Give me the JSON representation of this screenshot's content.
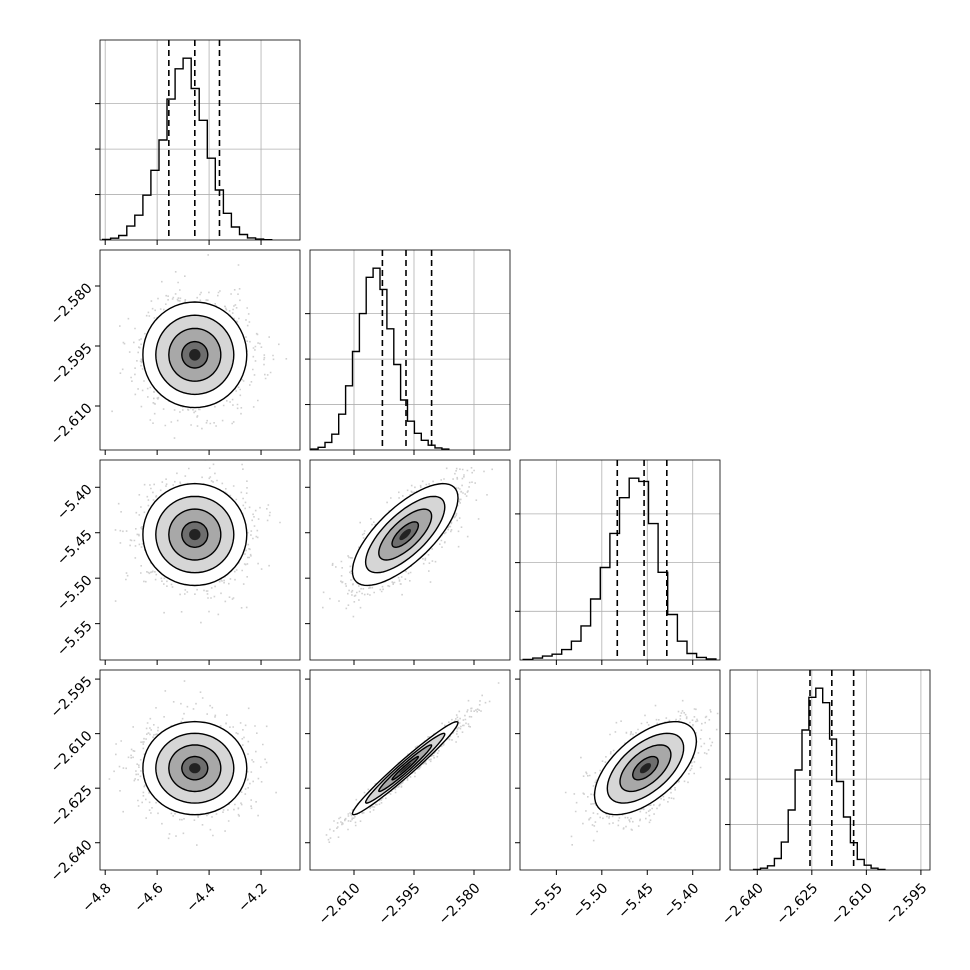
{
  "chart_data": {
    "type": "corner",
    "title": "",
    "parameters": [
      {
        "index": 0,
        "name": "",
        "range": [
          -4.82,
          -4.05
        ],
        "ticks": [
          -4.8,
          -4.6,
          -4.4,
          -4.2
        ],
        "tick_labels": [
          "−4.8",
          "−4.6",
          "−4.4",
          "−4.2"
        ],
        "quantiles": [
          -4.555,
          -4.455,
          -4.36
        ]
      },
      {
        "index": 1,
        "name": "",
        "range": [
          -2.621,
          -2.571
        ],
        "ticks": [
          -2.61,
          -2.595,
          -2.58
        ],
        "tick_labels": [
          "−2.610",
          "−2.595",
          "−2.580"
        ],
        "quantiles": [
          -2.6029,
          -2.597,
          -2.5906
        ]
      },
      {
        "index": 2,
        "name": "",
        "range": [
          -5.59,
          -5.37
        ],
        "ticks": [
          -5.55,
          -5.5,
          -5.45,
          -5.4
        ],
        "tick_labels": [
          "−5.55",
          "−5.50",
          "−5.45",
          "−5.40"
        ],
        "quantiles": [
          -5.483,
          -5.4535,
          -5.4285
        ]
      },
      {
        "index": 3,
        "name": "",
        "range": [
          -2.6475,
          -2.5925
        ],
        "ticks": [
          -2.64,
          -2.625,
          -2.61,
          -2.595
        ],
        "tick_labels": [
          "−2.640",
          "−2.625",
          "−2.610",
          "−2.595"
        ],
        "quantiles": [
          -2.6255,
          -2.6195,
          -2.6135
        ]
      }
    ],
    "histograms": [
      {
        "param": 0,
        "bin_start": -4.81,
        "bin_width": 0.031,
        "counts": [
          2,
          6,
          15,
          46,
          82,
          148,
          230,
          330,
          465,
          565,
          600,
          500,
          395,
          270,
          165,
          88,
          43,
          18,
          7,
          3,
          1
        ]
      },
      {
        "param": 1,
        "bin_start": -2.6207,
        "bin_width": 0.00172,
        "counts": [
          3,
          9,
          25,
          52,
          118,
          212,
          325,
          450,
          570,
          600,
          530,
          400,
          282,
          165,
          95,
          55,
          32,
          16,
          7,
          3
        ]
      },
      {
        "param": 2,
        "bin_start": -5.5865,
        "bin_width": 0.0106,
        "counts": [
          2,
          6,
          12,
          18,
          32,
          58,
          105,
          188,
          285,
          390,
          500,
          560,
          550,
          420,
          270,
          140,
          58,
          20,
          8,
          3
        ]
      },
      {
        "param": 3,
        "bin_start": -2.641,
        "bin_width": 0.0019,
        "counts": [
          2,
          6,
          14,
          38,
          92,
          198,
          330,
          462,
          570,
          600,
          552,
          432,
          292,
          175,
          90,
          35,
          16,
          6,
          2
        ]
      }
    ],
    "pairs": [
      {
        "x_param": 0,
        "y_param": 1,
        "mean": [
          -4.455,
          -2.5972
        ],
        "sd": [
          0.1,
          0.0066
        ],
        "corr": 0.0
      },
      {
        "x_param": 0,
        "y_param": 2,
        "mean": [
          -4.455,
          -5.452
        ],
        "sd": [
          0.1,
          0.028
        ],
        "corr": 0.0
      },
      {
        "x_param": 1,
        "y_param": 2,
        "mean": [
          -2.5972,
          -5.452
        ],
        "sd": [
          0.0066,
          0.028
        ],
        "corr": 0.72
      },
      {
        "x_param": 0,
        "y_param": 3,
        "mean": [
          -4.455,
          -2.6195
        ],
        "sd": [
          0.1,
          0.0064
        ],
        "corr": 0.0
      },
      {
        "x_param": 1,
        "y_param": 3,
        "mean": [
          -2.5972,
          -2.6195
        ],
        "sd": [
          0.0066,
          0.0064
        ],
        "corr": 0.975
      },
      {
        "x_param": 2,
        "y_param": 3,
        "mean": [
          -5.452,
          -2.6195
        ],
        "sd": [
          0.028,
          0.0064
        ],
        "corr": 0.58
      }
    ],
    "contour_levels_sigma": [
      0.5,
      1.0,
      1.5,
      2.0
    ],
    "grid": true,
    "quantile_line_style": "dashed",
    "colors": {
      "hist": "#000000",
      "points": "#777777",
      "contour": "#000000",
      "grid": "#b0b0b0"
    }
  }
}
